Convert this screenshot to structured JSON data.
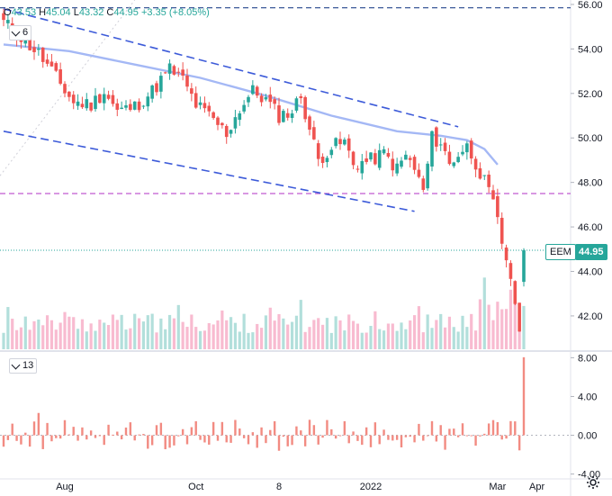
{
  "ohlc": {
    "open_label": "O",
    "open": "43.53",
    "high_label": "H",
    "high": "45.04",
    "low_label": "L",
    "low": "43.32",
    "close_label": "C",
    "close": "44.95",
    "change": "+3.35 (+8.05%)"
  },
  "main_indicator_value": "6",
  "sub_indicator_value": "13",
  "symbol": "EEM",
  "last_price": "44.95",
  "colors": {
    "up": "#26a69a",
    "down": "#ef5350",
    "vol_up": "#b2dfdb",
    "vol_down": "#f8bbd0",
    "ma": "#a4b8f5",
    "trend": "#3d5bd9",
    "level": "#c05ad0"
  },
  "chart_data": {
    "type": "candlestick",
    "x_ticks": [
      "Aug",
      "Oct",
      "8",
      "2022",
      "Mar",
      "Apr"
    ],
    "price_axis": {
      "ylim": [
        40.5,
        56.2
      ],
      "ticks": [
        "56.00",
        "54.00",
        "52.00",
        "50.00",
        "48.00",
        "46.00",
        "44.00",
        "42.00"
      ]
    },
    "sub_axis": {
      "ylim": [
        -4.5,
        8.5
      ],
      "ticks": [
        "8.00",
        "4.00",
        "0.00",
        "-4.00"
      ]
    },
    "price_anchors": [
      [
        0,
        55.2
      ],
      [
        4,
        54.5
      ],
      [
        8,
        53.8
      ],
      [
        12,
        52.7
      ],
      [
        16,
        51.6
      ],
      [
        20,
        51.5
      ],
      [
        23,
        52.1
      ],
      [
        26,
        51.2
      ],
      [
        30,
        51.4
      ],
      [
        34,
        52.1
      ],
      [
        38,
        53.1
      ],
      [
        41,
        52.6
      ],
      [
        44,
        51.5
      ],
      [
        48,
        50.8
      ],
      [
        51,
        50.2
      ],
      [
        54,
        51.3
      ],
      [
        57,
        52.1
      ],
      [
        60,
        51.7
      ],
      [
        63,
        51.0
      ],
      [
        66,
        51.2
      ],
      [
        68,
        51.9
      ],
      [
        70,
        50.4
      ],
      [
        72,
        49.0
      ],
      [
        75,
        49.6
      ],
      [
        78,
        49.8
      ],
      [
        80,
        48.8
      ],
      [
        84,
        49.0
      ],
      [
        87,
        49.3
      ],
      [
        90,
        48.6
      ],
      [
        92,
        49.2
      ],
      [
        94,
        48.6
      ],
      [
        96,
        47.6
      ],
      [
        98,
        50.0
      ],
      [
        100,
        49.8
      ],
      [
        102,
        48.8
      ],
      [
        104,
        49.3
      ],
      [
        106,
        49.6
      ],
      [
        108,
        48.9
      ],
      [
        110,
        48.0
      ],
      [
        112,
        47.0
      ],
      [
        113,
        46.2
      ],
      [
        114,
        45.3
      ],
      [
        115,
        44.6
      ],
      [
        116,
        43.8
      ],
      [
        117,
        42.2
      ],
      [
        118,
        41.6
      ],
      [
        119,
        44.9
      ]
    ],
    "last_bar": {
      "open": 43.53,
      "high": 45.04,
      "low": 43.32,
      "close": 44.95,
      "change": 3.35,
      "change_pct": 8.05
    },
    "horizontal_levels": [
      {
        "name": "top-level",
        "value": 55.85,
        "style": "dashed",
        "color": "#3b5998"
      },
      {
        "name": "support-level",
        "value": 47.5,
        "style": "dashed",
        "color": "#c05ad0"
      },
      {
        "name": "last-price-line",
        "value": 44.95,
        "style": "dotted",
        "color": "#26a69a"
      }
    ],
    "trend_lines": [
      {
        "name": "upper-channel",
        "from": [
          0,
          55.8
        ],
        "to": [
          104,
          50.5
        ]
      },
      {
        "name": "lower-channel",
        "from": [
          0,
          50.3
        ],
        "to": [
          94,
          46.7
        ]
      }
    ],
    "moving_average": [
      [
        0,
        54.2
      ],
      [
        15,
        53.9
      ],
      [
        30,
        53.3
      ],
      [
        45,
        52.7
      ],
      [
        60,
        51.9
      ],
      [
        75,
        51.0
      ],
      [
        90,
        50.3
      ],
      [
        100,
        50.1
      ],
      [
        106,
        49.9
      ],
      [
        110,
        49.5
      ],
      [
        113,
        48.8
      ]
    ],
    "sub_indicator_spikes": {
      "last_value": 8.05
    },
    "seed": 11
  }
}
